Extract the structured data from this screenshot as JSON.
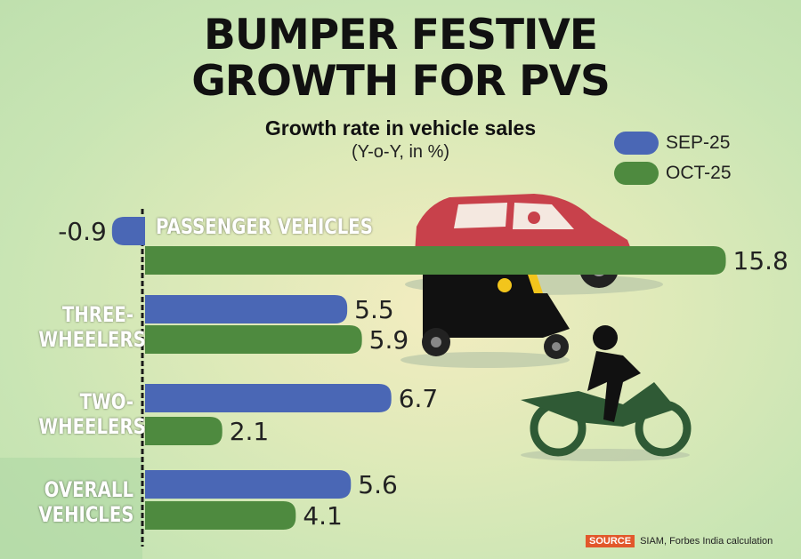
{
  "chart_data": {
    "type": "bar",
    "orientation": "horizontal",
    "title": "BUMPER FESTIVE GROWTH FOR PVS",
    "subtitle": "Growth rate in vehicle sales",
    "unit_note": "(Y-o-Y, in %)",
    "categories": [
      "PASSENGER VEHICLES",
      "THREE-WHEELERS",
      "TWO-WHEELERS",
      "OVERALL VEHICLES"
    ],
    "series": [
      {
        "name": "SEP-25",
        "color": "#4a67b5",
        "values": [
          -0.9,
          5.5,
          6.7,
          5.6
        ]
      },
      {
        "name": "OCT-25",
        "color": "#4e8a3f",
        "values": [
          15.8,
          5.9,
          2.1,
          4.1
        ]
      }
    ]
  },
  "source": {
    "label": "SOURCE",
    "text": "SIAM, Forbes India calculation"
  }
}
